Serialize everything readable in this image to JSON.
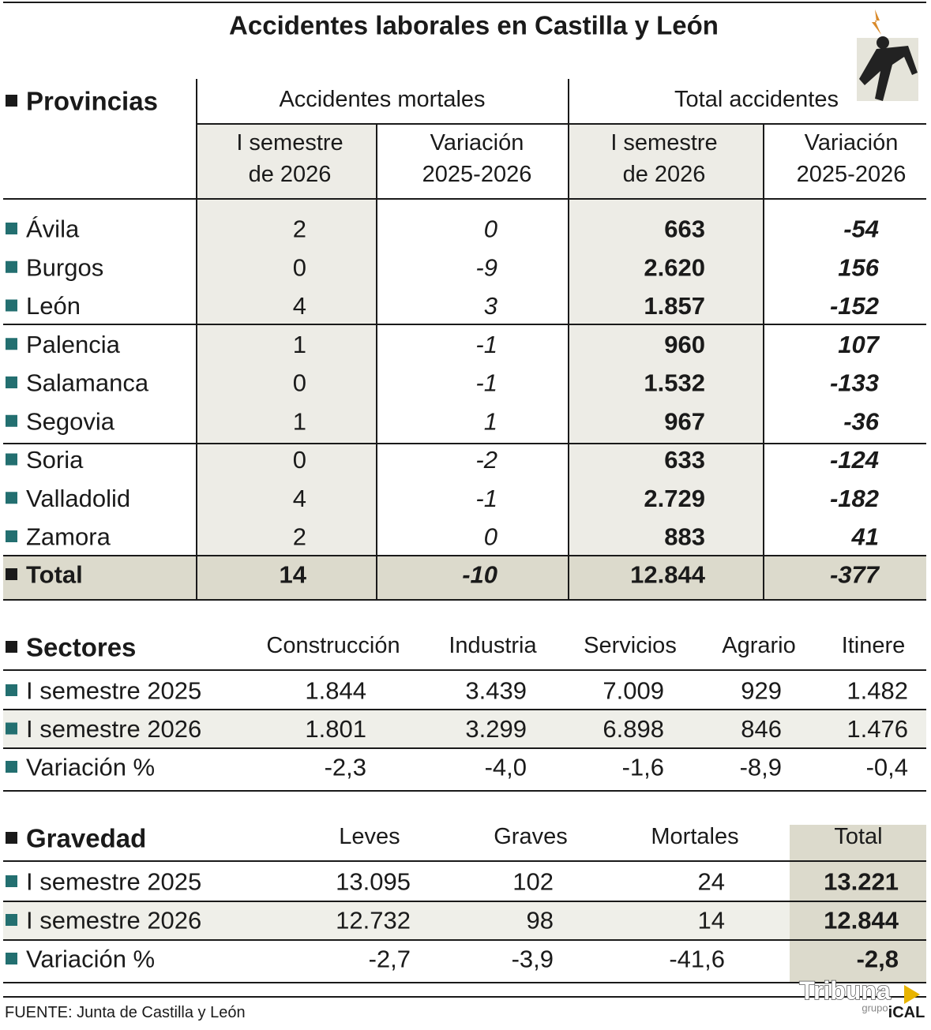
{
  "title": "Accidentes laborales en Castilla y León",
  "provincias": {
    "header": "Provincias",
    "groups": [
      "Accidentes mortales",
      "Total accidentes"
    ],
    "subheaders": [
      [
        "I semestre",
        "de 2026"
      ],
      [
        "Variación",
        "2025-2026"
      ],
      [
        "I semestre",
        "de 2026"
      ],
      [
        "Variación",
        "2025-2026"
      ]
    ],
    "rows": [
      [
        "Ávila",
        "2",
        "0",
        "663",
        "-54"
      ],
      [
        "Burgos",
        "0",
        "-9",
        "2.620",
        "156"
      ],
      [
        "León",
        "4",
        "3",
        "1.857",
        "-152"
      ],
      [
        "Palencia",
        "1",
        "-1",
        "960",
        "107"
      ],
      [
        "Salamanca",
        "0",
        "-1",
        "1.532",
        "-133"
      ],
      [
        "Segovia",
        "1",
        "1",
        "967",
        "-36"
      ],
      [
        "Soria",
        "0",
        "-2",
        "633",
        "-124"
      ],
      [
        "Valladolid",
        "4",
        "-1",
        "2.729",
        "-182"
      ],
      [
        "Zamora",
        "2",
        "0",
        "883",
        "41"
      ]
    ],
    "total": [
      "Total",
      "14",
      "-10",
      "12.844",
      "-377"
    ]
  },
  "sectores": {
    "header": "Sectores",
    "columns": [
      "Construcción",
      "Industria",
      "Servicios",
      "Agrario",
      "Itinere"
    ],
    "rows": [
      [
        "I semestre 2025",
        "1.844",
        "3.439",
        "7.009",
        "929",
        "1.482"
      ],
      [
        "I semestre 2026",
        "1.801",
        "3.299",
        "6.898",
        "846",
        "1.476"
      ],
      [
        "Variación %",
        "-2,3",
        "-4,0",
        "-1,6",
        "-8,9",
        "-0,4"
      ]
    ]
  },
  "gravedad": {
    "header": "Gravedad",
    "columns": [
      "Leves",
      "Graves",
      "Mortales",
      "Total"
    ],
    "rows": [
      [
        "I semestre 2025",
        "13.095",
        "102",
        "24",
        "13.221"
      ],
      [
        "I semestre 2026",
        "12.732",
        "98",
        "14",
        "12.844"
      ],
      [
        "Variación %",
        "-2,7",
        "-3,9",
        "-41,6",
        "-2,8"
      ]
    ]
  },
  "source": "FUENTE: Junta de Castilla y León",
  "logo": [
    "Tribuna",
    "grupo",
    "iCAL"
  ]
}
